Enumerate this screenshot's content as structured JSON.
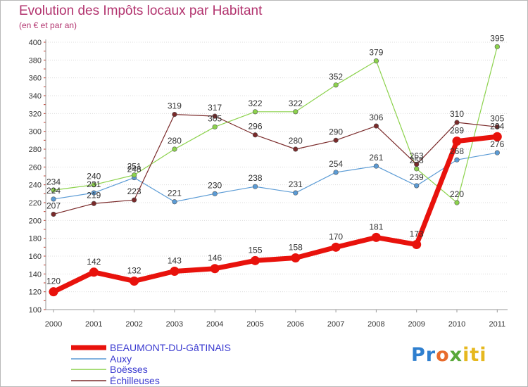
{
  "header": {
    "title": "Evolution des Impôts locaux par Habitant",
    "subtitle": "(en € et par an)"
  },
  "logo": {
    "text_part1": "Pr",
    "text_part2": "o",
    "text_part3": "x",
    "text_part4": "iti"
  },
  "chart_data": {
    "type": "line",
    "title": "Evolution des Impôts locaux par Habitant",
    "subtitle": "(en € et par an)",
    "xlabel": "",
    "ylabel": "",
    "x": [
      "2000",
      "2001",
      "2002",
      "2003",
      "2004",
      "2005",
      "2006",
      "2007",
      "2008",
      "2009",
      "2010",
      "2011"
    ],
    "ylim": [
      100,
      400
    ],
    "yticks": [
      100,
      120,
      140,
      160,
      180,
      200,
      220,
      240,
      260,
      280,
      300,
      320,
      340,
      360,
      380,
      400
    ],
    "grid": "horizontal",
    "legend_position": "bottom-left",
    "series": [
      {
        "name": "BEAUMONT-DU-GâTINAIS",
        "color": "#e8120c",
        "values": [
          120,
          142,
          132,
          143,
          146,
          155,
          158,
          170,
          181,
          173,
          289,
          294
        ],
        "labels": [
          "120",
          "142",
          "132",
          "143",
          "146",
          "155",
          "158",
          "170",
          "181",
          "173",
          "289",
          "294"
        ]
      },
      {
        "name": "Auxy",
        "color": "#5b9bd5",
        "values": [
          224,
          231,
          248,
          221,
          230,
          238,
          231,
          254,
          261,
          239,
          268,
          276
        ],
        "labels": [
          "224",
          "231",
          "248",
          "221",
          "230",
          "238",
          "231",
          "254",
          "261",
          "239",
          "268",
          "276"
        ]
      },
      {
        "name": "Boësses",
        "color": "#8cd24c",
        "values": [
          234,
          240,
          251,
          280,
          305,
          322,
          322,
          352,
          379,
          258,
          220,
          395
        ],
        "labels": [
          "234",
          "240",
          "251",
          "280",
          "305",
          "322",
          "322",
          "352",
          "379",
          "258",
          "220",
          "395"
        ]
      },
      {
        "name": "Échilleuses",
        "color": "#7a2a2a",
        "values": [
          207,
          219,
          223,
          319,
          317,
          296,
          280,
          290,
          306,
          263,
          310,
          305
        ],
        "labels": [
          "207",
          "219",
          "223",
          "319",
          "317",
          "296",
          "280",
          "290",
          "306",
          "263",
          "310",
          "305"
        ]
      }
    ]
  }
}
